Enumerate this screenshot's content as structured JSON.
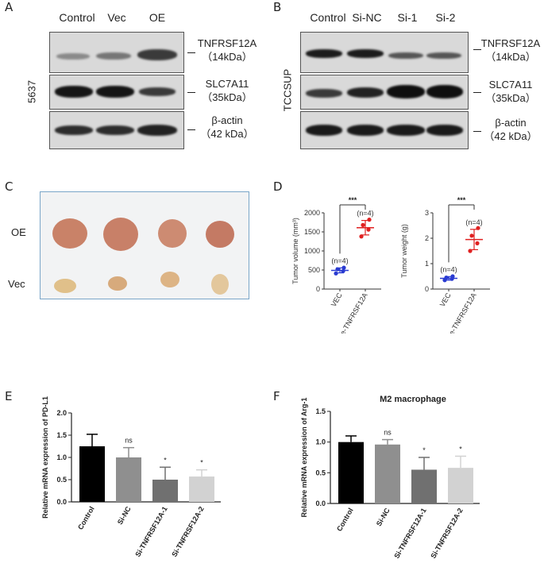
{
  "panels": {
    "A": {
      "label": "A",
      "lanes": [
        "Control",
        "Vec",
        "OE"
      ],
      "cell_line": "5637",
      "markers": [
        {
          "name": "TNFRSF12A",
          "size": "（14kDa）"
        },
        {
          "name": "SLC7A11",
          "size": "（35kDa）"
        },
        {
          "name": "β-actin",
          "size": "（42 kDa）"
        }
      ]
    },
    "B": {
      "label": "B",
      "lanes": [
        "Control",
        "Si-NC",
        "Si-1",
        "Si-2"
      ],
      "cell_line": "TCCSUP",
      "markers": [
        {
          "name": "TNFRSF12A",
          "size": "（14kDa）"
        },
        {
          "name": "SLC7A11",
          "size": "（35kDa）"
        },
        {
          "name": "β-actin",
          "size": "（42 kDa）"
        }
      ]
    },
    "C": {
      "label": "C",
      "rows": [
        "OE",
        "Vec"
      ]
    },
    "D": {
      "label": "D"
    },
    "E": {
      "label": "E"
    },
    "F": {
      "label": "F"
    }
  },
  "chart_data": [
    {
      "id": "D-volume",
      "type": "scatter",
      "ylabel": "Tumor volume (mm³)",
      "categories": [
        "VEC",
        "Oe-TNFRSF12A"
      ],
      "ylim": [
        0,
        2000
      ],
      "yticks": [
        0,
        500,
        1000,
        1500,
        2000
      ],
      "points": [
        [
          410,
          470,
          520,
          560
        ],
        [
          1380,
          1560,
          1680,
          1820
        ]
      ],
      "means": [
        490,
        1610
      ],
      "sds": [
        65,
        190
      ],
      "point_colors": [
        "#2a3bd1",
        "#e02020"
      ],
      "n_labels": [
        "(n=4)",
        "(n=4)"
      ],
      "significance": "***"
    },
    {
      "id": "D-weight",
      "type": "scatter",
      "ylabel": "Tumor weight (g)",
      "categories": [
        "VEC",
        "Oe-TNFRSF12A"
      ],
      "ylim": [
        0,
        3
      ],
      "yticks": [
        0,
        1,
        2,
        3
      ],
      "points": [
        [
          0.35,
          0.4,
          0.45,
          0.5
        ],
        [
          1.5,
          1.8,
          2.1,
          2.4
        ]
      ],
      "means": [
        0.42,
        1.95
      ],
      "sds": [
        0.07,
        0.4
      ],
      "point_colors": [
        "#2a3bd1",
        "#e02020"
      ],
      "n_labels": [
        "(n=4)",
        "(n=4)"
      ],
      "significance": "***"
    },
    {
      "id": "E",
      "type": "bar",
      "title": "",
      "ylabel": "Relative mRNA expression of PD-L1",
      "categories": [
        "Control",
        "Si-NC",
        "Si-TNFRSF12A-1",
        "Si-TNFRSF12A-2"
      ],
      "values": [
        1.25,
        1.0,
        0.5,
        0.57
      ],
      "errors": [
        0.27,
        0.22,
        0.28,
        0.15
      ],
      "colors": [
        "#000000",
        "#8f8f8f",
        "#707070",
        "#d2d2d2"
      ],
      "annotations": [
        "",
        "ns",
        "*",
        "*"
      ],
      "ylim": [
        0,
        2.0
      ],
      "yticks": [
        "0.0",
        "0.5",
        "1.0",
        "1.5",
        "2.0"
      ]
    },
    {
      "id": "F",
      "type": "bar",
      "title": "M2 macrophage",
      "ylabel": "Relative mRNA expression of Arg-1",
      "categories": [
        "Control",
        "Si-NC",
        "Si-TNFRSF12A-1",
        "Si-TNFRSF12A-2"
      ],
      "values": [
        1.0,
        0.96,
        0.55,
        0.58
      ],
      "errors": [
        0.1,
        0.08,
        0.2,
        0.19
      ],
      "colors": [
        "#000000",
        "#8f8f8f",
        "#707070",
        "#d2d2d2"
      ],
      "annotations": [
        "",
        "ns",
        "*",
        "*"
      ],
      "ylim": [
        0,
        1.5
      ],
      "yticks": [
        "0.0",
        "0.5",
        "1.0",
        "1.5"
      ]
    }
  ]
}
